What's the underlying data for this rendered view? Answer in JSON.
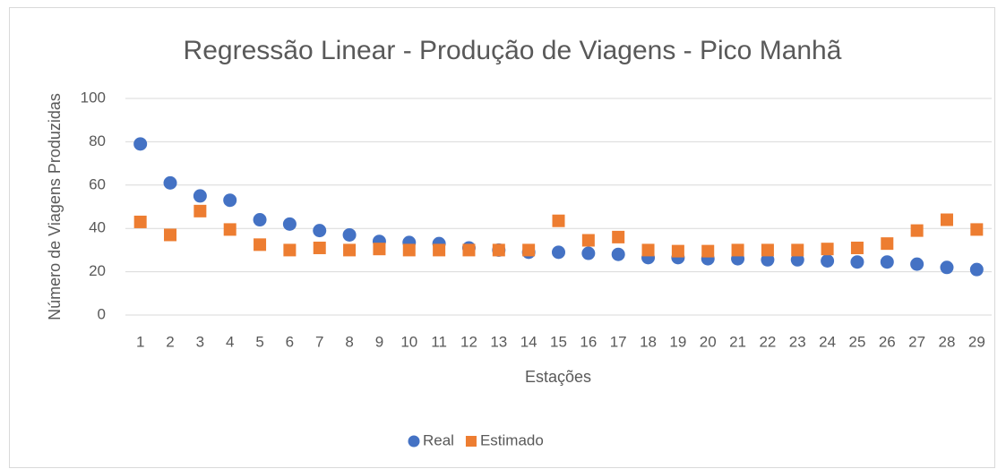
{
  "chart_data": {
    "type": "scatter",
    "title": "Regressão Linear - Produção de Viagens - Pico Manhã",
    "x_label": "Estações",
    "y_label": "Número de Viagens Produzidas",
    "categories": [
      1,
      2,
      3,
      4,
      5,
      6,
      7,
      8,
      9,
      10,
      11,
      12,
      13,
      14,
      15,
      16,
      17,
      18,
      19,
      20,
      21,
      22,
      23,
      24,
      25,
      26,
      27,
      28,
      29
    ],
    "series": [
      {
        "name": "Real",
        "color": "#4472c4",
        "marker": "circle",
        "values": [
          79,
          61,
          55,
          53,
          44,
          42,
          39,
          37,
          34,
          33.5,
          33,
          31,
          30,
          29,
          29,
          28.5,
          28,
          26.5,
          26.5,
          26,
          26,
          25.5,
          25.5,
          25,
          24.5,
          24.5,
          23.5,
          22,
          21
        ]
      },
      {
        "name": "Estimado",
        "color": "#ed7d31",
        "marker": "square",
        "values": [
          43,
          37,
          48,
          39.5,
          32.5,
          30,
          31,
          30,
          30.5,
          30,
          30,
          30,
          30,
          30,
          43.5,
          34.5,
          36,
          30,
          29.5,
          29.5,
          30,
          30,
          30,
          30.5,
          31,
          33,
          39,
          44,
          39.5
        ]
      }
    ],
    "ylim": [
      0,
      100
    ],
    "yticks": [
      0,
      20,
      40,
      60,
      80,
      100
    ],
    "grid": true,
    "legend": "bottom"
  }
}
